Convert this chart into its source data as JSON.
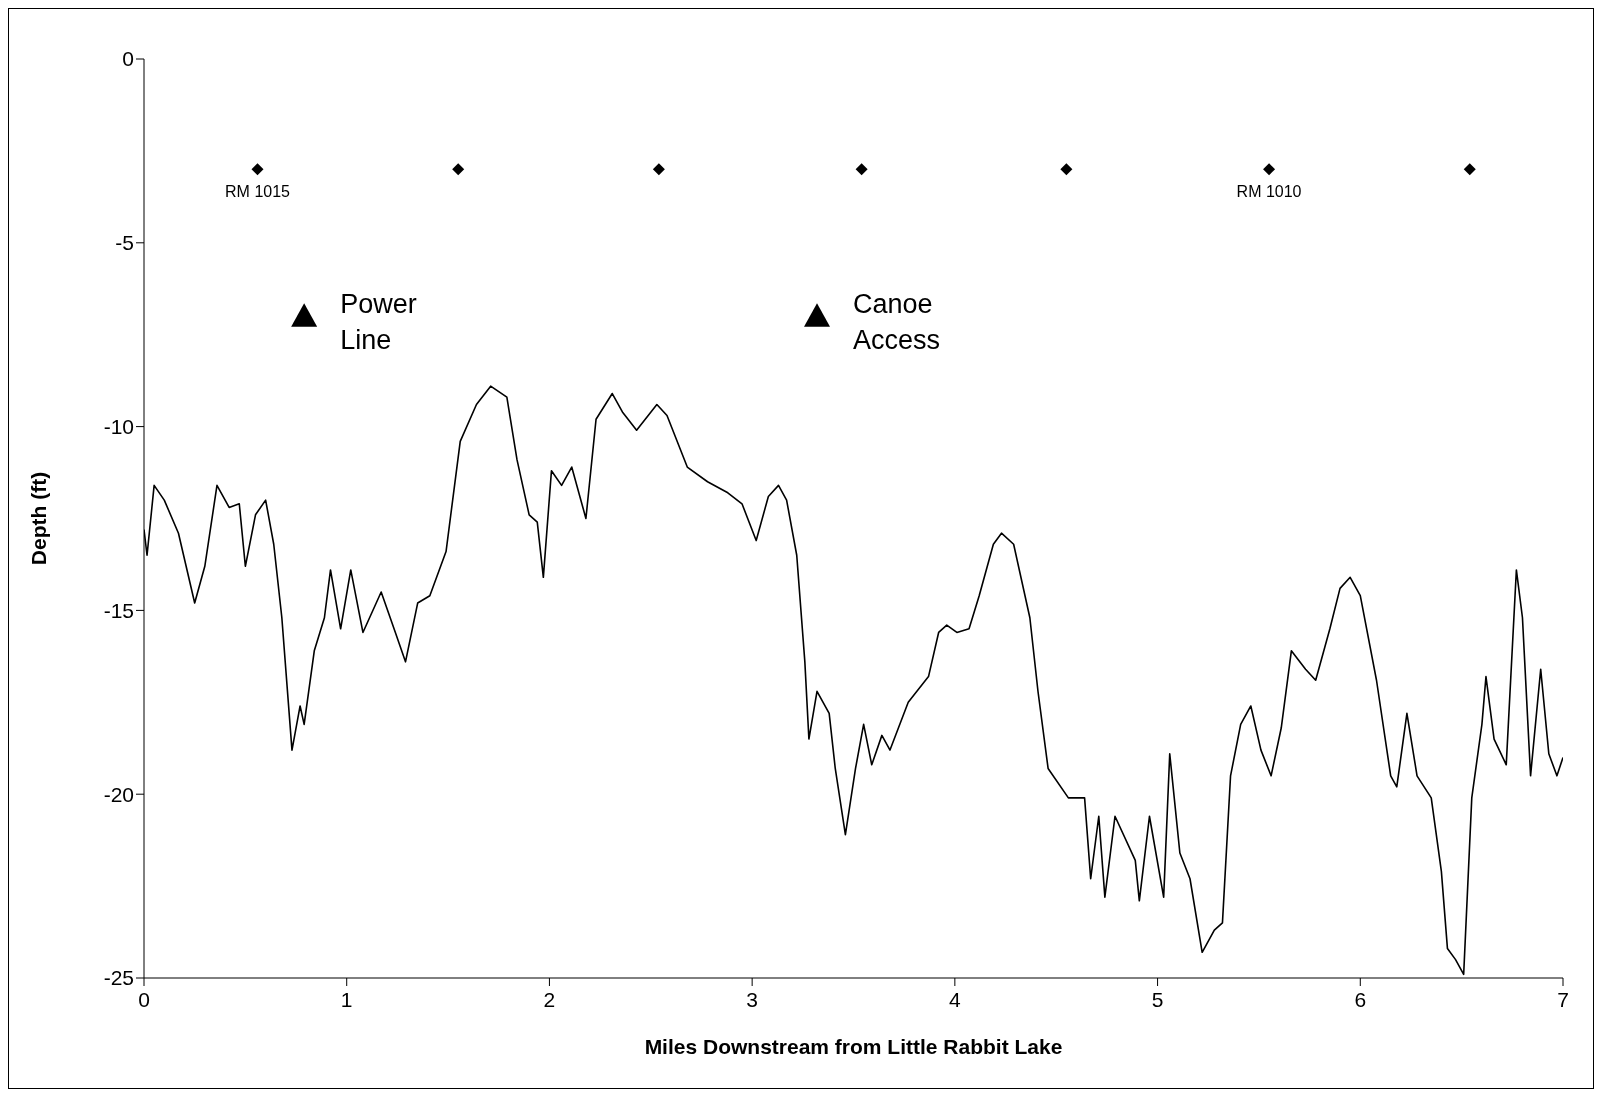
{
  "chart_data": {
    "type": "line",
    "xlabel": "Miles Downstream from Little Rabbit Lake",
    "ylabel": "Depth (ft)",
    "xlim": [
      0,
      7
    ],
    "xticks": [
      0,
      1,
      2,
      3,
      4,
      5,
      6,
      7
    ],
    "ylim": [
      -25,
      0
    ],
    "yticks": [
      0,
      -5,
      -10,
      -15,
      -20,
      -25
    ],
    "grid": false,
    "series": [
      {
        "color": "#000000",
        "marker": "none",
        "line_style": "solid",
        "x": [
          0,
          0.015,
          0.05,
          0.1,
          0.17,
          0.25,
          0.3,
          0.36,
          0.42,
          0.47,
          0.5,
          0.55,
          0.6,
          0.64,
          0.68,
          0.73,
          0.77,
          0.79,
          0.84,
          0.89,
          0.92,
          0.97,
          1.02,
          1.08,
          1.17,
          1.24,
          1.29,
          1.35,
          1.41,
          1.49,
          1.56,
          1.64,
          1.71,
          1.79,
          1.84,
          1.9,
          1.94,
          1.97,
          2.01,
          2.06,
          2.11,
          2.18,
          2.23,
          2.31,
          2.36,
          2.43,
          2.53,
          2.58,
          2.68,
          2.78,
          2.88,
          2.95,
          3.02,
          3.08,
          3.13,
          3.17,
          3.22,
          3.26,
          3.28,
          3.32,
          3.38,
          3.41,
          3.46,
          3.51,
          3.55,
          3.59,
          3.64,
          3.68,
          3.77,
          3.87,
          3.92,
          3.96,
          4.01,
          4.07,
          4.12,
          4.19,
          4.23,
          4.29,
          4.37,
          4.41,
          4.46,
          4.56,
          4.64,
          4.67,
          4.71,
          4.74,
          4.79,
          4.89,
          4.91,
          4.96,
          5.03,
          5.06,
          5.11,
          5.16,
          5.22,
          5.28,
          5.32,
          5.36,
          5.41,
          5.46,
          5.51,
          5.56,
          5.61,
          5.66,
          5.73,
          5.78,
          5.85,
          5.9,
          5.95,
          6.0,
          6.08,
          6.15,
          6.18,
          6.23,
          6.28,
          6.35,
          6.4,
          6.43,
          6.47,
          6.51,
          6.55,
          6.6,
          6.62,
          6.66,
          6.72,
          6.77,
          6.8,
          6.84,
          6.89,
          6.93,
          6.97,
          7.0
        ],
        "values": [
          -12.8,
          -13.5,
          -11.6,
          -12.0,
          -12.9,
          -14.8,
          -13.8,
          -11.6,
          -12.2,
          -12.1,
          -13.8,
          -12.4,
          -12.0,
          -13.2,
          -15.2,
          -18.8,
          -17.6,
          -18.1,
          -16.1,
          -15.2,
          -13.9,
          -15.5,
          -13.9,
          -15.6,
          -14.5,
          -15.6,
          -16.4,
          -14.8,
          -14.6,
          -13.4,
          -10.4,
          -9.4,
          -8.9,
          -9.2,
          -10.9,
          -12.4,
          -12.6,
          -14.1,
          -11.2,
          -11.6,
          -11.1,
          -12.5,
          -9.8,
          -9.1,
          -9.6,
          -10.1,
          -9.4,
          -9.7,
          -11.1,
          -11.5,
          -11.8,
          -12.1,
          -13.1,
          -11.9,
          -11.6,
          -12.0,
          -13.5,
          -16.4,
          -18.5,
          -17.2,
          -17.8,
          -19.3,
          -21.1,
          -19.3,
          -18.1,
          -19.2,
          -18.4,
          -18.8,
          -17.5,
          -16.8,
          -15.6,
          -15.4,
          -15.6,
          -15.5,
          -14.6,
          -13.2,
          -12.9,
          -13.2,
          -15.2,
          -17.2,
          -19.3,
          -20.1,
          -20.1,
          -22.3,
          -20.6,
          -22.8,
          -20.6,
          -21.8,
          -22.9,
          -20.6,
          -22.8,
          -18.9,
          -21.6,
          -22.3,
          -24.3,
          -23.7,
          -23.5,
          -19.5,
          -18.1,
          -17.6,
          -18.8,
          -19.5,
          -18.2,
          -16.1,
          -16.6,
          -16.9,
          -15.5,
          -14.4,
          -14.1,
          -14.6,
          -16.9,
          -19.5,
          -19.8,
          -17.8,
          -19.5,
          -20.1,
          -22.1,
          -24.2,
          -24.5,
          -24.9,
          -20.1,
          -18.1,
          -16.8,
          -18.5,
          -19.2,
          -13.9,
          -15.2,
          -19.5,
          -16.6,
          -18.9,
          -19.5,
          -19.0
        ]
      },
      {
        "type": "scatter",
        "color": "#000000",
        "marker": "diamond",
        "x": [
          0.56,
          1.55,
          2.54,
          3.54,
          4.55,
          5.55,
          6.54
        ],
        "values": [
          -3,
          -3,
          -3,
          -3,
          -3,
          -3,
          -3
        ]
      },
      {
        "type": "scatter",
        "color": "#000000",
        "marker": "triangle",
        "x": [
          0.79,
          3.32
        ],
        "values": [
          -7,
          -7
        ]
      }
    ],
    "annotations": [
      {
        "text": "RM 1015",
        "x": 0.56,
        "y": -3
      },
      {
        "text": "RM 1010",
        "x": 5.55,
        "y": -3
      },
      {
        "text": "Power Line",
        "x": 0.79,
        "y": -7
      },
      {
        "text": "Canoe Access",
        "x": 3.32,
        "y": -7
      }
    ]
  }
}
